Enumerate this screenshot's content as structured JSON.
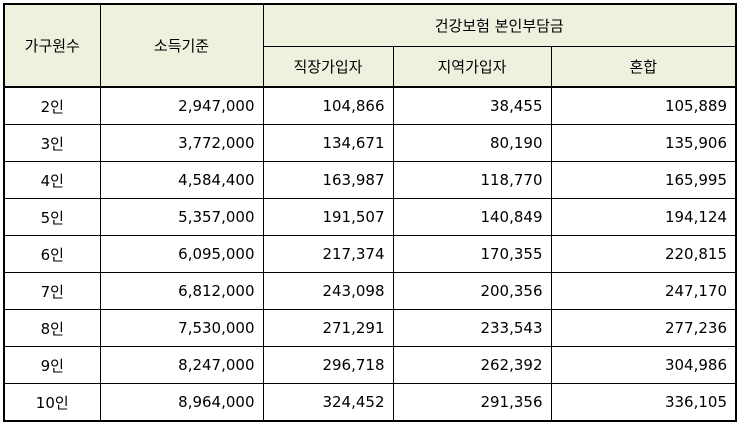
{
  "table": {
    "headers": {
      "household": "가구원수",
      "income": "소득기준",
      "group": "건강보험 본인부담금",
      "employee": "직장가입자",
      "regional": "지역가입자",
      "mixed": "혼합"
    },
    "rows": [
      {
        "count": "2인",
        "income": "2,947,000",
        "employee": "104,866",
        "regional": "38,455",
        "mixed": "105,889"
      },
      {
        "count": "3인",
        "income": "3,772,000",
        "employee": "134,671",
        "regional": "80,190",
        "mixed": "135,906"
      },
      {
        "count": "4인",
        "income": "4,584,400",
        "employee": "163,987",
        "regional": "118,770",
        "mixed": "165,995"
      },
      {
        "count": "5인",
        "income": "5,357,000",
        "employee": "191,507",
        "regional": "140,849",
        "mixed": "194,124"
      },
      {
        "count": "6인",
        "income": "6,095,000",
        "employee": "217,374",
        "regional": "170,355",
        "mixed": "220,815"
      },
      {
        "count": "7인",
        "income": "6,812,000",
        "employee": "243,098",
        "regional": "200,356",
        "mixed": "247,170"
      },
      {
        "count": "8인",
        "income": "7,530,000",
        "employee": "271,291",
        "regional": "233,543",
        "mixed": "277,236"
      },
      {
        "count": "9인",
        "income": "8,247,000",
        "employee": "296,718",
        "regional": "262,392",
        "mixed": "304,986"
      },
      {
        "count": "10인",
        "income": "8,964,000",
        "employee": "324,452",
        "regional": "291,356",
        "mixed": "336,105"
      }
    ]
  }
}
